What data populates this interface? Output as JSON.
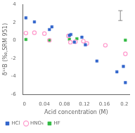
{
  "chart_data": {
    "type": "scatter",
    "xlabel": "Acid concentration (M)",
    "ylabel": "δ¹¹B (‰,SRM 951)",
    "xlim": [
      -0.003,
      0.21
    ],
    "ylim": [
      -6,
      4
    ],
    "xticks": [
      0,
      0.04,
      0.08,
      0.12,
      0.16,
      0.2
    ],
    "yticks": [
      -6,
      -4,
      -2,
      0,
      2,
      4
    ],
    "grid": false,
    "legend": "lower left",
    "series": [
      {
        "name": "HCl",
        "color": "#3366cc",
        "marker": "square",
        "x": [
          0.003,
          0.02,
          0.05,
          0.055,
          0.09,
          0.093,
          0.1,
          0.115,
          0.122,
          0.145,
          0.185,
          0.198,
          0.202
        ],
        "values": [
          2.5,
          2.05,
          1.2,
          1.5,
          0.55,
          0.65,
          -0.2,
          0.35,
          -0.5,
          -2.3,
          -3.5,
          -2.9,
          -4.7
        ]
      },
      {
        "name": "HNO₃",
        "color": "#ff99cc",
        "marker": "open_circle",
        "x": [
          0.003,
          0.02,
          0.04,
          0.05,
          0.088,
          0.092,
          0.102,
          0.118,
          0.125,
          0.162,
          0.202
        ],
        "values": [
          0.8,
          0.85,
          0.75,
          0.0,
          0.5,
          -0.2,
          -0.15,
          -0.1,
          -0.35,
          -0.55,
          -1.5
        ]
      },
      {
        "name": "HF",
        "color": "#33bb44",
        "marker": "square",
        "x": [
          0.003,
          0.05,
          0.09,
          0.105,
          0.202
        ],
        "values": [
          0.1,
          0.02,
          0.12,
          0.18,
          0.02
        ]
      }
    ],
    "error_bar": {
      "x": 0.192,
      "y": 2.75,
      "error": 0.55,
      "color": "#888888"
    }
  }
}
